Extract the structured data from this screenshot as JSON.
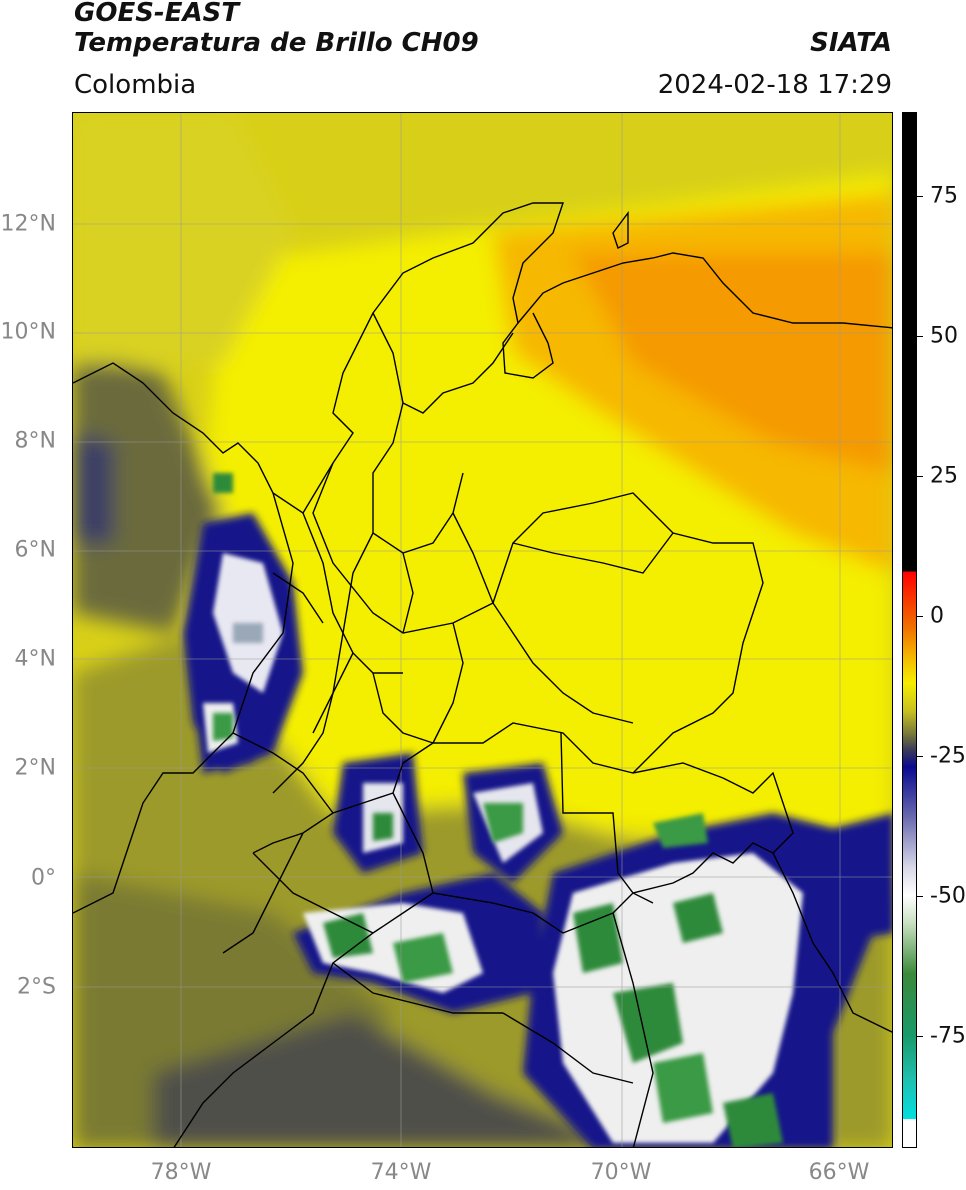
{
  "header": {
    "title_line1": "GOES-EAST",
    "title_line2": "Temperatura de Brillo CH09",
    "org": "SIATA",
    "region": "Colombia",
    "datetime": "2024-02-18 17:29"
  },
  "map": {
    "lat_labels": [
      "12°N",
      "10°N",
      "8°N",
      "6°N",
      "4°N",
      "2°N",
      "0°",
      "2°S"
    ],
    "lon_labels": [
      "78°W",
      "74°W",
      "70°W",
      "66°W"
    ],
    "colors": {
      "ocean_yellow": "#d4cc1a",
      "land_yellow": "#f2ec05",
      "orange": "#f59a00",
      "olive": "#8a8a2c",
      "dark_olive": "#5b5b3e",
      "navy": "#16188a",
      "white": "#f2f2f2",
      "green": "#2f8a3a"
    }
  },
  "colorbar": {
    "tick_labels": [
      "75",
      "50",
      "25",
      "0",
      "-25",
      "-50",
      "-75"
    ],
    "ticks": [
      75,
      50,
      25,
      0,
      -25,
      -50,
      -75
    ],
    "range": [
      -95,
      90
    ]
  }
}
